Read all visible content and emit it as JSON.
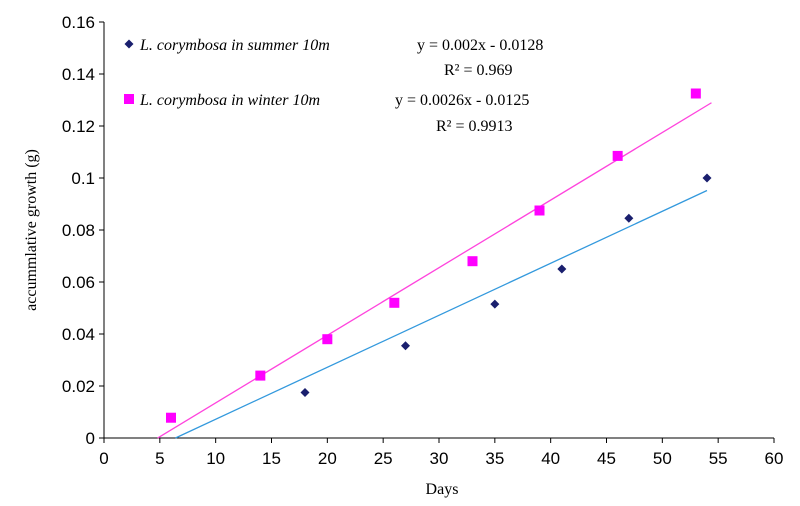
{
  "chart_data": {
    "type": "scatter",
    "xlabel": "Days",
    "ylabel": "accummlative growth (g)",
    "xlim": [
      0,
      60
    ],
    "ylim": [
      0,
      0.16
    ],
    "x_ticks": [
      "0",
      "5",
      "10",
      "15",
      "20",
      "25",
      "30",
      "35",
      "40",
      "45",
      "50",
      "55",
      "60"
    ],
    "y_ticks": [
      "0",
      "0.02",
      "0.04",
      "0.06",
      "0.08",
      "0.1",
      "0.12",
      "0.14",
      "0.16"
    ],
    "grid": false,
    "legend_position": "top-left",
    "series": [
      {
        "name": "L. corymbosa in summer 10m",
        "marker": "diamond",
        "color": "#1a1f6e",
        "points": [
          [
            18,
            0.0175
          ],
          [
            27,
            0.0355
          ],
          [
            35,
            0.0515
          ],
          [
            41,
            0.065
          ],
          [
            47,
            0.0845
          ],
          [
            54,
            0.1
          ]
        ],
        "trendline": {
          "color": "#3399dd",
          "slope": 0.002,
          "intercept": -0.0128,
          "x_range": [
            6.4,
            54
          ],
          "equation": "y = 0.002x - 0.0128",
          "r2": "R² = 0.969"
        }
      },
      {
        "name": "L. corymbosa in winter 10m",
        "marker": "square",
        "color": "#ff00ff",
        "points": [
          [
            6,
            0.0078
          ],
          [
            14,
            0.024
          ],
          [
            20,
            0.038
          ],
          [
            26,
            0.052
          ],
          [
            33,
            0.068
          ],
          [
            39,
            0.0875
          ],
          [
            46,
            0.1085
          ],
          [
            53,
            0.1325
          ]
        ],
        "trendline": {
          "color": "#ff44dd",
          "slope": 0.0026,
          "intercept": -0.0125,
          "x_range": [
            4.8,
            54.4
          ],
          "equation": "y = 0.0026x - 0.0125",
          "r2": "R² = 0.9913"
        }
      }
    ]
  }
}
